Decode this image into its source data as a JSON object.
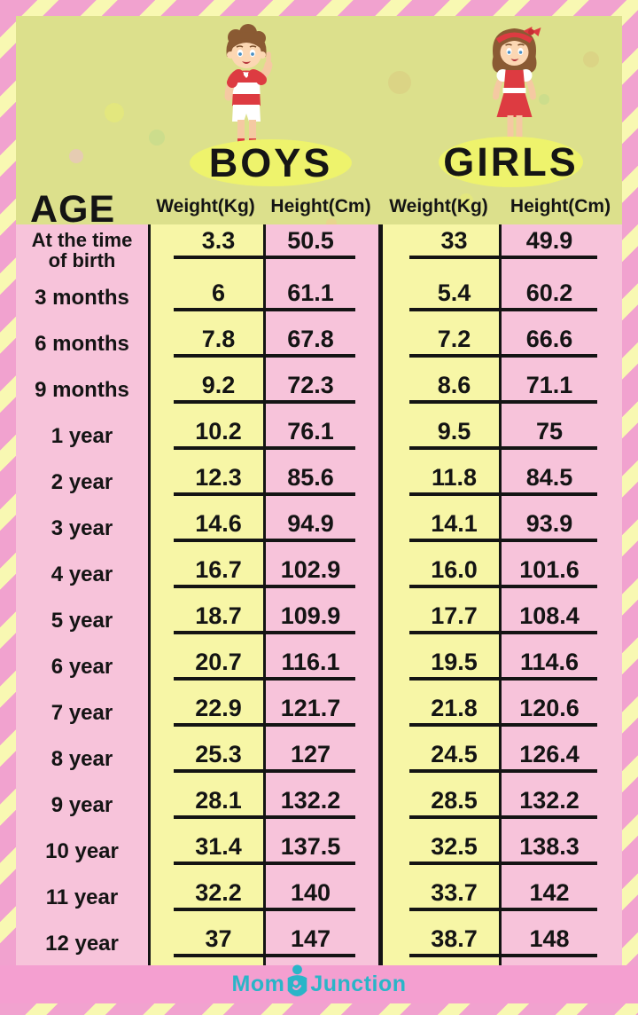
{
  "chart_data": {
    "type": "table",
    "groups": [
      "BOYS",
      "GIRLS"
    ],
    "columns": [
      "AGE",
      "Weight(Kg)",
      "Height(Cm)",
      "Weight(Kg)",
      "Height(Cm)"
    ],
    "rows": [
      {
        "age": "At the time of birth",
        "age_lines": [
          "At the time",
          "of birth"
        ],
        "boys_weight": "3.3",
        "boys_height": "50.5",
        "girls_weight": "33",
        "girls_height": "49.9"
      },
      {
        "age": "3 months",
        "age_lines": [
          "3 months"
        ],
        "boys_weight": "6",
        "boys_height": "61.1",
        "girls_weight": "5.4",
        "girls_height": "60.2"
      },
      {
        "age": "6 months",
        "age_lines": [
          "6 months"
        ],
        "boys_weight": "7.8",
        "boys_height": "67.8",
        "girls_weight": "7.2",
        "girls_height": "66.6"
      },
      {
        "age": "9 months",
        "age_lines": [
          "9 months"
        ],
        "boys_weight": "9.2",
        "boys_height": "72.3",
        "girls_weight": "8.6",
        "girls_height": "71.1"
      },
      {
        "age": "1 year",
        "age_lines": [
          "1 year"
        ],
        "boys_weight": "10.2",
        "boys_height": "76.1",
        "girls_weight": "9.5",
        "girls_height": "75"
      },
      {
        "age": "2 year",
        "age_lines": [
          "2 year"
        ],
        "boys_weight": "12.3",
        "boys_height": "85.6",
        "girls_weight": "11.8",
        "girls_height": "84.5"
      },
      {
        "age": "3 year",
        "age_lines": [
          "3 year"
        ],
        "boys_weight": "14.6",
        "boys_height": "94.9",
        "girls_weight": "14.1",
        "girls_height": "93.9"
      },
      {
        "age": "4 year",
        "age_lines": [
          "4 year"
        ],
        "boys_weight": "16.7",
        "boys_height": "102.9",
        "girls_weight": "16.0",
        "girls_height": "101.6"
      },
      {
        "age": "5 year",
        "age_lines": [
          "5 year"
        ],
        "boys_weight": "18.7",
        "boys_height": "109.9",
        "girls_weight": "17.7",
        "girls_height": "108.4"
      },
      {
        "age": "6 year",
        "age_lines": [
          "6 year"
        ],
        "boys_weight": "20.7",
        "boys_height": "116.1",
        "girls_weight": "19.5",
        "girls_height": "114.6"
      },
      {
        "age": "7 year",
        "age_lines": [
          "7 year"
        ],
        "boys_weight": "22.9",
        "boys_height": "121.7",
        "girls_weight": "21.8",
        "girls_height": "120.6"
      },
      {
        "age": "8 year",
        "age_lines": [
          "8 year"
        ],
        "boys_weight": "25.3",
        "boys_height": "127",
        "girls_weight": "24.5",
        "girls_height": "126.4"
      },
      {
        "age": "9 year",
        "age_lines": [
          "9 year"
        ],
        "boys_weight": "28.1",
        "boys_height": "132.2",
        "girls_weight": "28.5",
        "girls_height": "132.2"
      },
      {
        "age": "10 year",
        "age_lines": [
          "10 year"
        ],
        "boys_weight": "31.4",
        "boys_height": "137.5",
        "girls_weight": "32.5",
        "girls_height": "138.3"
      },
      {
        "age": "11 year",
        "age_lines": [
          "11 year"
        ],
        "boys_weight": "32.2",
        "boys_height": "140",
        "girls_weight": "33.7",
        "girls_height": "142"
      },
      {
        "age": "12 year",
        "age_lines": [
          "12 year"
        ],
        "boys_weight": "37",
        "boys_height": "147",
        "girls_weight": "38.7",
        "girls_height": "148"
      }
    ]
  },
  "footer": {
    "brand_mom": "Mom",
    "brand_junction": "Junction"
  },
  "colors": {
    "panel_green": "#dce08c",
    "column_pink": "#f7c3da",
    "column_yellow": "#f7f6a6",
    "oval_yellow": "#eef36c",
    "stripe_pink": "#f1a2cf",
    "stripe_yellow": "#f8f8b2",
    "footer_pink": "#f49fd0",
    "brand_teal": "#2ab5c8",
    "line_black": "#141414"
  }
}
